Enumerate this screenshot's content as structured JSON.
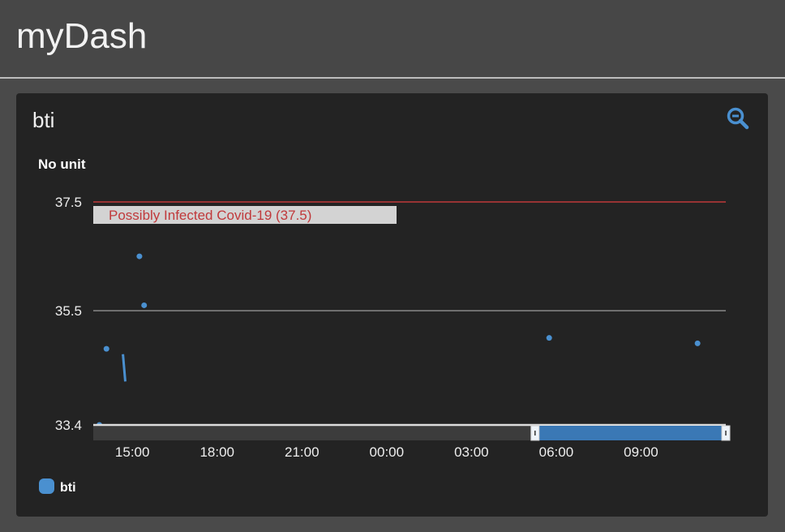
{
  "app": {
    "title": "myDash"
  },
  "widget": {
    "title": "bti",
    "zoom_icon": "zoom-out-icon",
    "unit_label": "No unit"
  },
  "chart_data": {
    "type": "scatter",
    "title": "",
    "ylabel": "No unit",
    "ylim": [
      33.4,
      37.5
    ],
    "yticks": [
      "37.5",
      "35.5",
      "33.4"
    ],
    "ytick_values": [
      37.5,
      35.5,
      33.4
    ],
    "xlim": [
      "2020-01-01T13:37",
      "2020-01-02T12:00"
    ],
    "xticks": [
      "15:00",
      "18:00",
      "21:00",
      "00:00",
      "03:00",
      "06:00",
      "09:00"
    ],
    "xtick_values": [
      "2020-01-01T15:00",
      "2020-01-01T18:00",
      "2020-01-01T21:00",
      "2020-01-02T00:00",
      "2020-01-02T03:00",
      "2020-01-02T06:00",
      "2020-01-02T09:00"
    ],
    "series": [
      {
        "name": "bti",
        "color": "#4a90d0",
        "points": [
          [
            "2020-01-01T13:50",
            33.4
          ],
          [
            "2020-01-01T14:05",
            34.8
          ],
          [
            "2020-01-01T15:15",
            36.5
          ],
          [
            "2020-01-01T15:25",
            35.6
          ],
          [
            "2020-01-02T05:45",
            35.0
          ],
          [
            "2020-01-02T11:00",
            34.9
          ]
        ],
        "segment": [
          [
            "2020-01-01T14:40",
            34.7
          ],
          [
            "2020-01-01T14:45",
            34.2
          ]
        ]
      }
    ],
    "threshold": {
      "value": 37.5,
      "label": "Possibly Infected Covid-19 (37.5)",
      "color": "#c0393b"
    },
    "navigator": {
      "selection": [
        "2020-01-02T05:15",
        "2020-01-02T12:00"
      ],
      "color": "#3a78b5"
    },
    "legend": {
      "placement": "bottom-left",
      "entries": [
        "bti"
      ]
    },
    "grid": true
  }
}
